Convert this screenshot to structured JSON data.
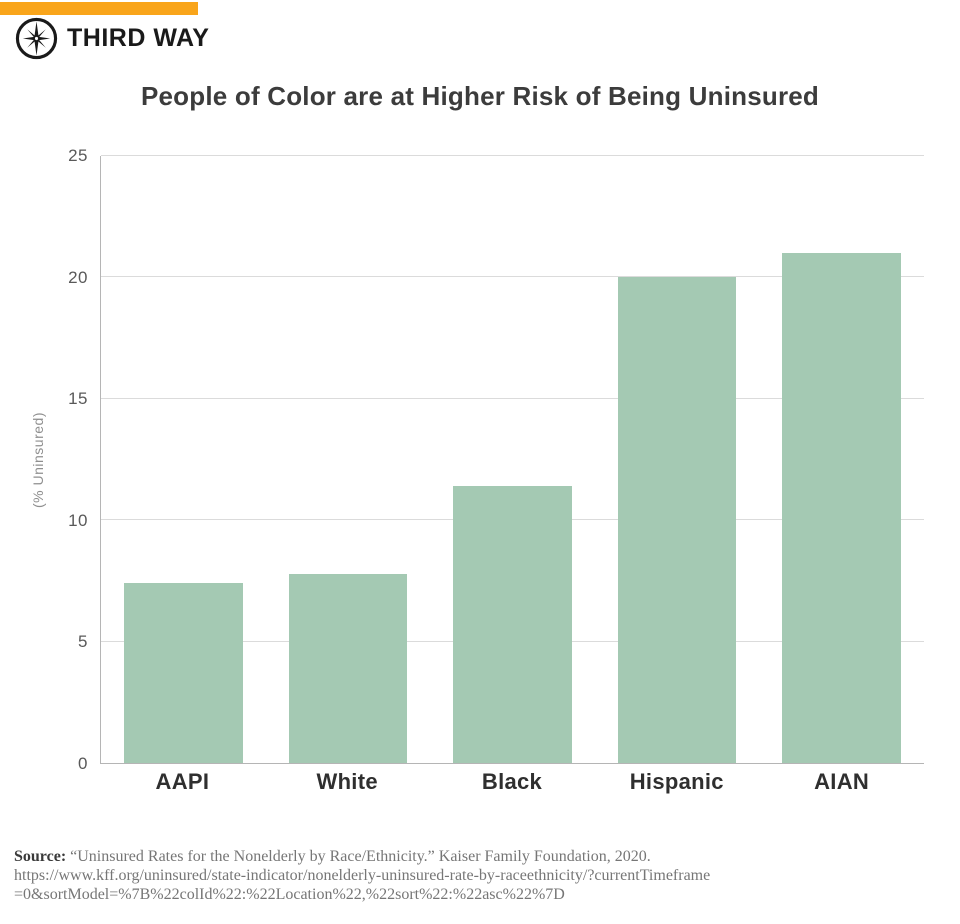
{
  "brand": {
    "name": "THIRD WAY",
    "accent_orange": "#F9A51B",
    "logo_icon": "compass-star-icon"
  },
  "chart_data": {
    "type": "bar",
    "title": "People of Color are at Higher Risk of Being Uninsured",
    "categories": [
      "AAPI",
      "White",
      "Black",
      "Hispanic",
      "AIAN"
    ],
    "values": [
      7.4,
      7.8,
      11.4,
      20.0,
      21.0
    ],
    "xlabel": "",
    "ylabel": "(% Uninsured)",
    "ylim": [
      0,
      25
    ],
    "yticks": [
      0,
      5,
      10,
      15,
      20,
      25
    ],
    "grid": true,
    "legend": "none",
    "bar_color": "#A4C9B3",
    "gridline_color": "#DBDBDB",
    "axis_color": "#B5B5B5"
  },
  "source": {
    "label": "Source:",
    "citation": "“Uninsured Rates for the Nonelderly by Race/Ethnicity.” Kaiser Family Foundation, 2020.",
    "url_lines": [
      "https://www.kff.org/uninsured/state-indicator/nonelderly-uninsured-rate-by-raceethnicity/?currentTimeframe",
      "=0&sortModel=%7B%22colId%22:%22Location%22,%22sort%22:%22asc%22%7D"
    ]
  }
}
